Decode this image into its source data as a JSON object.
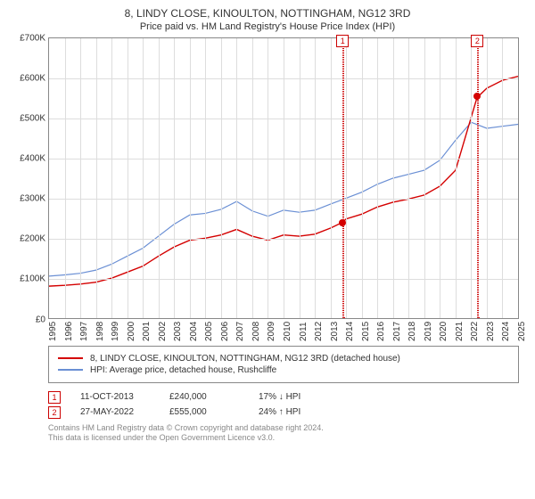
{
  "title": "8, LINDY CLOSE, KINOULTON, NOTTINGHAM, NG12 3RD",
  "subtitle": "Price paid vs. HM Land Registry's House Price Index (HPI)",
  "chart": {
    "type": "line",
    "background_color": "#ffffff",
    "grid_color": "#dddddd",
    "axis_color": "#888888",
    "text_color": "#333333",
    "tick_fontsize": 10,
    "x_years": [
      1995,
      1996,
      1997,
      1998,
      1999,
      2000,
      2001,
      2002,
      2003,
      2004,
      2005,
      2006,
      2007,
      2008,
      2009,
      2010,
      2011,
      2012,
      2013,
      2014,
      2015,
      2016,
      2017,
      2018,
      2019,
      2020,
      2021,
      2022,
      2023,
      2024,
      2025
    ],
    "xlim": [
      1995,
      2025
    ],
    "ylim": [
      0,
      700000
    ],
    "ytick_step": 100000,
    "ytick_labels": [
      "£0",
      "£100K",
      "£200K",
      "£300K",
      "£400K",
      "£500K",
      "£600K",
      "£700K"
    ],
    "series": [
      {
        "name": "HPI: Average price, detached house, Rushcliffe",
        "color": "#6a8fd4",
        "line_width": 1.2,
        "points": [
          [
            1995,
            105000
          ],
          [
            1996,
            108000
          ],
          [
            1997,
            112000
          ],
          [
            1998,
            120000
          ],
          [
            1999,
            135000
          ],
          [
            2000,
            155000
          ],
          [
            2001,
            175000
          ],
          [
            2002,
            205000
          ],
          [
            2003,
            235000
          ],
          [
            2004,
            258000
          ],
          [
            2005,
            262000
          ],
          [
            2006,
            272000
          ],
          [
            2007,
            292000
          ],
          [
            2008,
            268000
          ],
          [
            2009,
            255000
          ],
          [
            2010,
            270000
          ],
          [
            2011,
            265000
          ],
          [
            2012,
            270000
          ],
          [
            2013,
            285000
          ],
          [
            2014,
            300000
          ],
          [
            2015,
            315000
          ],
          [
            2016,
            335000
          ],
          [
            2017,
            350000
          ],
          [
            2018,
            360000
          ],
          [
            2019,
            370000
          ],
          [
            2020,
            395000
          ],
          [
            2021,
            445000
          ],
          [
            2022,
            490000
          ],
          [
            2023,
            475000
          ],
          [
            2024,
            480000
          ],
          [
            2025,
            485000
          ]
        ]
      },
      {
        "name": "8, LINDY CLOSE, KINOULTON, NOTTINGHAM, NG12 3RD (detached house)",
        "color": "#d40000",
        "line_width": 1.4,
        "points": [
          [
            1995,
            80000
          ],
          [
            1996,
            82000
          ],
          [
            1997,
            85000
          ],
          [
            1998,
            90000
          ],
          [
            1999,
            100000
          ],
          [
            2000,
            115000
          ],
          [
            2001,
            130000
          ],
          [
            2002,
            155000
          ],
          [
            2003,
            178000
          ],
          [
            2004,
            195000
          ],
          [
            2005,
            200000
          ],
          [
            2006,
            208000
          ],
          [
            2007,
            222000
          ],
          [
            2008,
            205000
          ],
          [
            2009,
            195000
          ],
          [
            2010,
            208000
          ],
          [
            2011,
            205000
          ],
          [
            2012,
            210000
          ],
          [
            2013,
            225000
          ],
          [
            2013.78,
            240000
          ],
          [
            2014,
            248000
          ],
          [
            2015,
            260000
          ],
          [
            2016,
            278000
          ],
          [
            2017,
            290000
          ],
          [
            2018,
            298000
          ],
          [
            2019,
            308000
          ],
          [
            2020,
            330000
          ],
          [
            2021,
            370000
          ],
          [
            2022.4,
            555000
          ],
          [
            2022.6,
            560000
          ],
          [
            2023,
            575000
          ],
          [
            2024,
            595000
          ],
          [
            2025,
            605000
          ]
        ]
      }
    ],
    "markers": [
      {
        "id": "1",
        "x": 2013.78,
        "y": 240000,
        "line_color": "#cc0000",
        "dot_color": "#d40000"
      },
      {
        "id": "2",
        "x": 2022.4,
        "y": 555000,
        "line_color": "#cc0000",
        "dot_color": "#d40000"
      }
    ]
  },
  "legend": {
    "items": [
      {
        "color": "#d40000",
        "label": "8, LINDY CLOSE, KINOULTON, NOTTINGHAM, NG12 3RD (detached house)"
      },
      {
        "color": "#6a8fd4",
        "label": "HPI: Average price, detached house, Rushcliffe"
      }
    ]
  },
  "sales": [
    {
      "id": "1",
      "date": "11-OCT-2013",
      "price": "£240,000",
      "delta": "17% ↓ HPI"
    },
    {
      "id": "2",
      "date": "27-MAY-2022",
      "price": "£555,000",
      "delta": "24% ↑ HPI"
    }
  ],
  "footer": {
    "line1": "Contains HM Land Registry data © Crown copyright and database right 2024.",
    "line2": "This data is licensed under the Open Government Licence v3.0."
  }
}
